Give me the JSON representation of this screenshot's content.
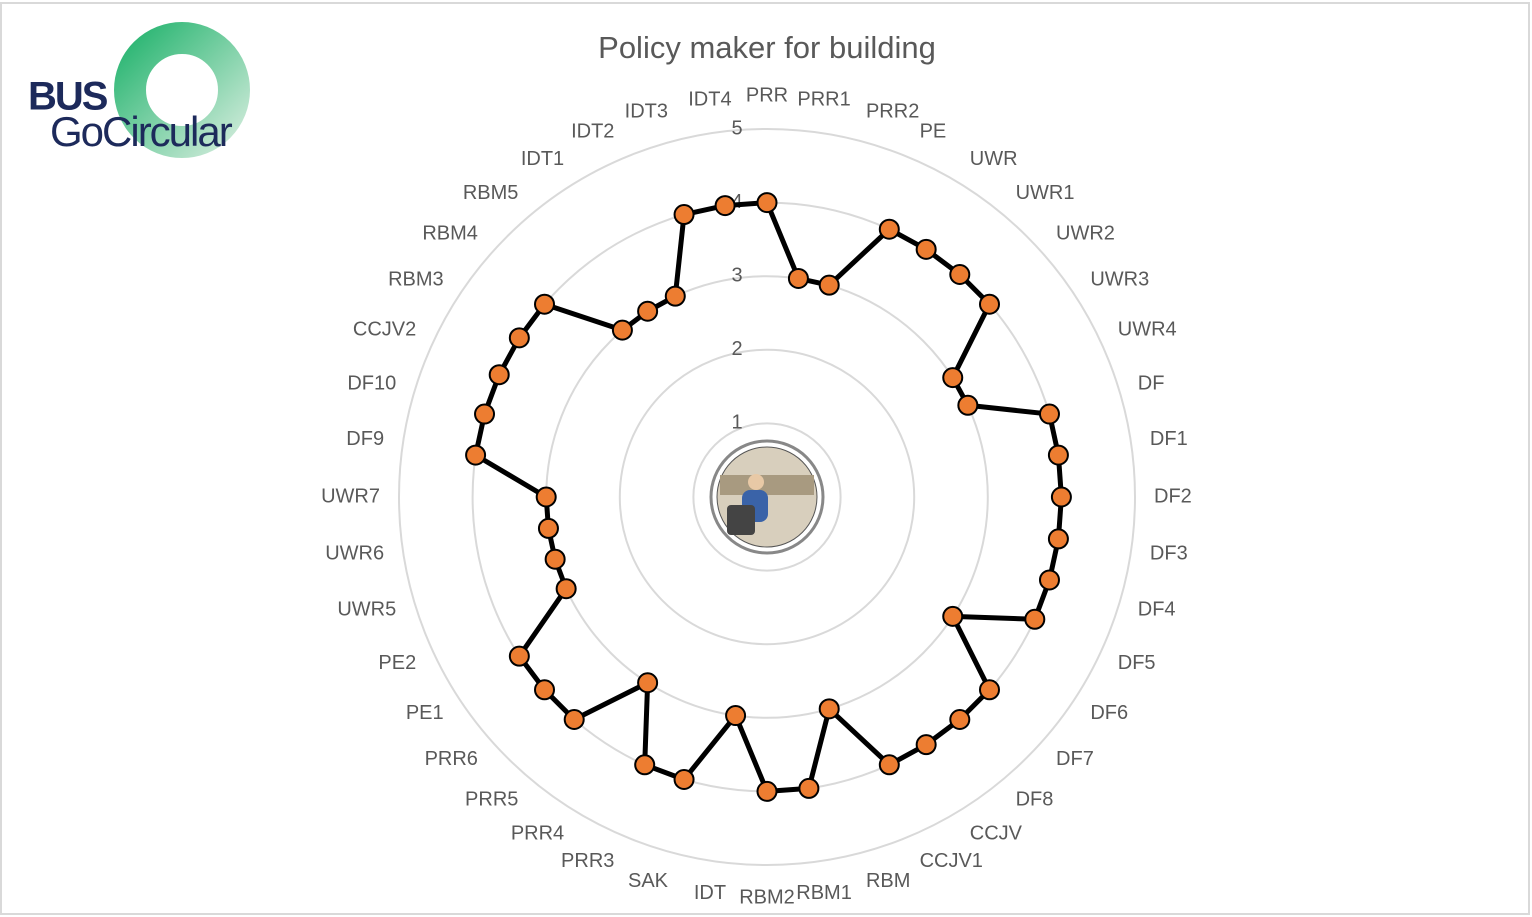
{
  "logo": {
    "line1": "BUS",
    "line2": "GoCircular"
  },
  "chart_data": {
    "type": "radar",
    "title": "Policy maker for building",
    "categories": [
      "PRR",
      "PRR1",
      "PRR2",
      "PE",
      "UWR",
      "UWR1",
      "UWR2",
      "UWR3",
      "UWR4",
      "DF",
      "DF1",
      "DF2",
      "DF3",
      "DF4",
      "DF5",
      "DF6",
      "DF7",
      "DF8",
      "CCJV",
      "CCJV1",
      "RBM",
      "RBM1",
      "RBM2",
      "IDT",
      "SAK",
      "PRR3",
      "PRR4",
      "PRR5",
      "PRR6",
      "PE1",
      "PE2",
      "UWR5",
      "UWR6",
      "UWR7",
      "DF9",
      "DF10",
      "CCJV2",
      "RBM3",
      "RBM4",
      "RBM5",
      "IDT1",
      "IDT2",
      "IDT3",
      "IDT4"
    ],
    "values": [
      4,
      3,
      3,
      4,
      4,
      4,
      4,
      3,
      3,
      4,
      4,
      4,
      4,
      4,
      4,
      3,
      4,
      4,
      4,
      4,
      3,
      4,
      4,
      3,
      4,
      4,
      3,
      4,
      4,
      4,
      3,
      3,
      3,
      3,
      4,
      4,
      4,
      4,
      4,
      3,
      3,
      3,
      4,
      4
    ],
    "line_color": "#000000",
    "marker_color": "#ed7d31",
    "ylim": [
      0,
      5
    ],
    "yticks": [
      1,
      2,
      3,
      4,
      5
    ],
    "grid": true
  }
}
